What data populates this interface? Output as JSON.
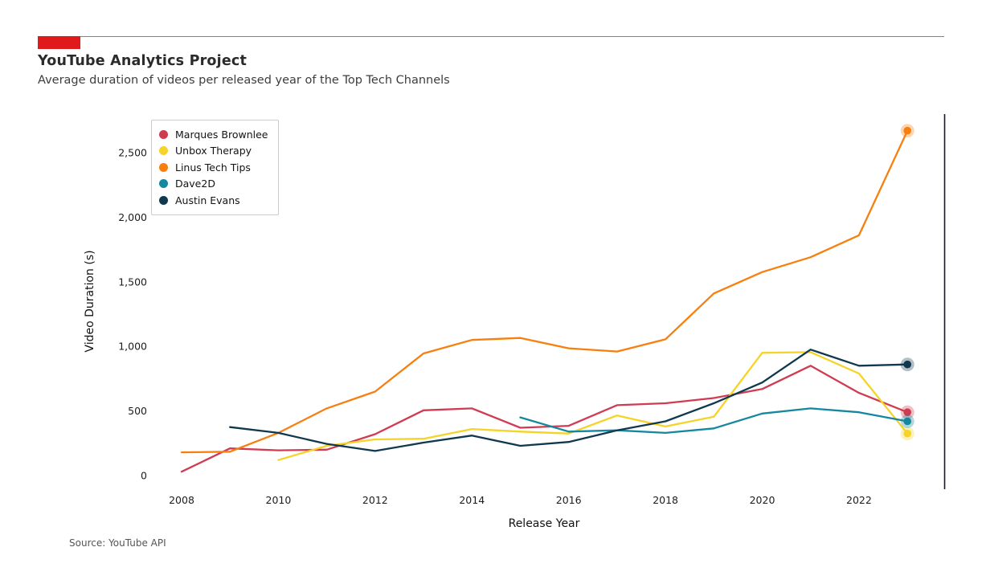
{
  "header": {
    "title": "YouTube Analytics Project",
    "subtitle": "Average duration of videos per released year of the Top Tech Channels",
    "accent_color": "#e01a1a",
    "rule_color": "#c4685c"
  },
  "footer": {
    "source": "Source: YouTube API"
  },
  "chart_data": {
    "type": "line",
    "title": "",
    "xlabel": "Release Year",
    "ylabel": "Video Duration (s)",
    "x_ticks": [
      2008,
      2010,
      2012,
      2014,
      2016,
      2018,
      2020,
      2022
    ],
    "y_ticks": [
      0,
      500,
      1000,
      1500,
      2000,
      2500
    ],
    "xlim": [
      2007.5,
      2023.8
    ],
    "ylim": [
      0,
      2750
    ],
    "grid": false,
    "legend_position": "upper-left",
    "end_markers": true,
    "right_spine_color": "#141a2e",
    "tick_label_color": "#1c1c1c",
    "series": [
      {
        "name": "Marques Brownlee",
        "color": "#d13b51",
        "x": [
          2008,
          2009,
          2010,
          2011,
          2012,
          2013,
          2014,
          2015,
          2016,
          2017,
          2018,
          2019,
          2020,
          2021,
          2022,
          2023
        ],
        "y": [
          30,
          210,
          195,
          200,
          320,
          505,
          520,
          370,
          385,
          545,
          560,
          600,
          670,
          850,
          640,
          490
        ]
      },
      {
        "name": "Unbox Therapy",
        "color": "#f5d327",
        "x": [
          2010,
          2011,
          2012,
          2013,
          2014,
          2015,
          2016,
          2017,
          2018,
          2019,
          2020,
          2021,
          2022,
          2023
        ],
        "y": [
          120,
          230,
          280,
          285,
          360,
          340,
          325,
          465,
          380,
          455,
          950,
          955,
          790,
          325
        ]
      },
      {
        "name": "Linus Tech Tips",
        "color": "#f77f0e",
        "x": [
          2008,
          2009,
          2010,
          2011,
          2012,
          2013,
          2014,
          2015,
          2016,
          2017,
          2018,
          2019,
          2020,
          2021,
          2022,
          2023
        ],
        "y": [
          180,
          185,
          330,
          520,
          650,
          945,
          1050,
          1065,
          985,
          960,
          1055,
          1410,
          1575,
          1690,
          1860,
          2670
        ]
      },
      {
        "name": "Dave2D",
        "color": "#15879e",
        "x": [
          2015,
          2016,
          2017,
          2018,
          2019,
          2020,
          2021,
          2022,
          2023
        ],
        "y": [
          450,
          340,
          350,
          330,
          365,
          480,
          520,
          490,
          420
        ]
      },
      {
        "name": "Austin Evans",
        "color": "#10384f",
        "x": [
          2009,
          2010,
          2011,
          2012,
          2013,
          2014,
          2015,
          2016,
          2017,
          2018,
          2019,
          2020,
          2021,
          2022,
          2023
        ],
        "y": [
          375,
          330,
          245,
          190,
          255,
          310,
          230,
          260,
          350,
          420,
          560,
          720,
          975,
          850,
          860
        ]
      }
    ]
  }
}
